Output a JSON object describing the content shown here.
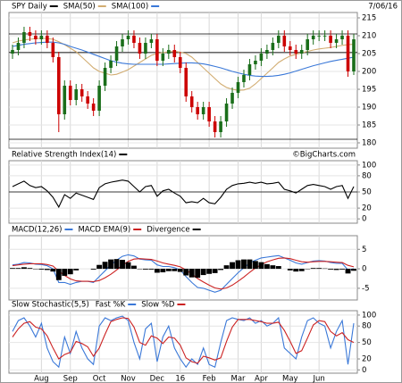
{
  "chart_data": [
    {
      "type": "candlestick",
      "title": "SPY Daily",
      "date": "7/06/16",
      "color": "#000000",
      "up_color": "#1a6e1a",
      "down_color": "#cc0000",
      "open": [
        205,
        206,
        208,
        211,
        210,
        209,
        210,
        208,
        204,
        188,
        196,
        192,
        195,
        193,
        191,
        189,
        196,
        201,
        203,
        207,
        209,
        210,
        208,
        205,
        208,
        209,
        203,
        205,
        206,
        204,
        201,
        193,
        190,
        188,
        190,
        186,
        183,
        186,
        191,
        194,
        197,
        199,
        202,
        203,
        205,
        206,
        208,
        210,
        207,
        206,
        205,
        206,
        209,
        210,
        210,
        210,
        208,
        209,
        210,
        200
      ],
      "high": [
        207.5,
        209.5,
        212.5,
        212.5,
        211.5,
        211.5,
        211.5,
        209.5,
        205.5,
        197.5,
        197.5,
        196.5,
        196.5,
        194.5,
        192.5,
        197.5,
        202.5,
        204.5,
        208.5,
        210.5,
        211.5,
        211.5,
        209.5,
        209.5,
        210.5,
        210.5,
        206.5,
        207.5,
        207.5,
        205.5,
        202.5,
        194.5,
        191.5,
        191.5,
        191.5,
        187.5,
        187.5,
        192.5,
        195.5,
        198.5,
        200.5,
        203.5,
        204.5,
        206.5,
        207.5,
        209.5,
        211.5,
        211.5,
        208.5,
        207.5,
        207.5,
        210.5,
        211.5,
        211.5,
        211.5,
        211.5,
        210.5,
        211.5,
        211.5,
        210.5
      ],
      "low": [
        203.5,
        204.5,
        206.5,
        208.5,
        207.5,
        207.5,
        206.5,
        202.5,
        183,
        186.5,
        190.5,
        190.5,
        191.5,
        189.5,
        187.5,
        187.5,
        194.5,
        199.5,
        201.5,
        205.5,
        207.5,
        206.5,
        203.5,
        203.5,
        206.5,
        201.5,
        201.5,
        203.5,
        202.5,
        199.5,
        191.5,
        188.5,
        186.5,
        186.5,
        184.5,
        181.5,
        181.5,
        184.5,
        189.5,
        192.5,
        195.5,
        197.5,
        200.5,
        201.5,
        203.5,
        204.5,
        206.5,
        205.5,
        204.5,
        203.5,
        203.5,
        204.5,
        207.5,
        208.5,
        208.5,
        206.5,
        206.5,
        207.5,
        198.5,
        199
      ],
      "close": [
        206,
        208,
        211,
        210,
        209,
        210,
        208,
        204,
        188,
        196,
        192,
        195,
        193,
        191,
        189,
        196,
        201,
        203,
        207,
        209,
        210,
        208,
        205,
        208,
        209,
        203,
        205,
        206,
        204,
        201,
        193,
        190,
        188,
        190,
        186,
        183,
        186,
        191,
        194,
        197,
        199,
        202,
        203,
        205,
        206,
        208,
        210,
        207,
        206,
        205,
        206,
        209,
        210,
        210,
        210,
        208,
        209,
        210,
        200,
        209
      ],
      "series": [
        {
          "name": "SMA(50)",
          "color": "#d2ad72",
          "values": [
            208,
            208.5,
            208.8,
            209,
            209.2,
            209.3,
            209.2,
            209,
            208.3,
            207.5,
            206.5,
            205.5,
            204,
            202.5,
            201,
            200,
            199.5,
            199,
            199.2,
            199.8,
            200.5,
            201.5,
            202.5,
            203.5,
            204.5,
            205,
            205.3,
            205.5,
            205.6,
            205.4,
            205,
            204,
            202.5,
            201,
            199.5,
            198,
            196.5,
            195.5,
            195,
            194.7,
            194.8,
            195.3,
            196.5,
            198,
            199.5,
            201,
            202.5,
            203.5,
            204.3,
            204.8,
            205.2,
            205.6,
            206,
            206.3,
            206.5,
            206.7,
            207,
            207.3,
            207.5,
            207.6
          ]
        },
        {
          "name": "SMA(100)",
          "color": "#3a78d8",
          "values": [
            207,
            207.3,
            207.6,
            207.8,
            208,
            208.1,
            208.2,
            208.2,
            208,
            207.6,
            207,
            206.5,
            206,
            205.4,
            204.8,
            204.2,
            203.6,
            203,
            202.6,
            202.3,
            202.1,
            202,
            202,
            202,
            202,
            202,
            202,
            202.1,
            202.2,
            202.3,
            202.4,
            202.4,
            202.3,
            202.1,
            201.8,
            201.4,
            201,
            200.5,
            200,
            199.6,
            199.2,
            198.9,
            198.7,
            198.6,
            198.6,
            198.7,
            198.9,
            199.2,
            199.6,
            200.1,
            200.6,
            201.1,
            201.6,
            202,
            202.4,
            202.8,
            203.1,
            203.4,
            203.7,
            204
          ]
        }
      ],
      "reference_lines": [
        210.5,
        205.3,
        181
      ],
      "ylim": [
        178.5,
        216.5
      ],
      "yticks": [
        180,
        185,
        190,
        195,
        200,
        205,
        210,
        215
      ]
    },
    {
      "type": "line",
      "credit": "©BigCharts.com",
      "series": [
        {
          "name": "Relative Strength Index(14)",
          "color": "#000000",
          "values": [
            60,
            65,
            70,
            62,
            58,
            60,
            52,
            40,
            22,
            45,
            38,
            48,
            44,
            40,
            36,
            58,
            65,
            68,
            70,
            72,
            70,
            60,
            50,
            60,
            62,
            42,
            52,
            55,
            48,
            42,
            30,
            32,
            30,
            38,
            30,
            28,
            40,
            55,
            62,
            65,
            66,
            68,
            66,
            68,
            65,
            66,
            68,
            55,
            52,
            48,
            55,
            62,
            64,
            62,
            60,
            55,
            60,
            62,
            38,
            60
          ]
        }
      ],
      "reference_lines": [
        50
      ],
      "ylim": [
        -8,
        108
      ],
      "yticks": [
        0,
        20,
        50,
        80,
        100
      ]
    },
    {
      "type": "macd",
      "series": [
        {
          "name": "MACD(12,26)",
          "color": "#3a78d8",
          "values": [
            1,
            1.2,
            1.6,
            1.5,
            1.2,
            1.1,
            0.8,
            0,
            -3.5,
            -3.5,
            -4,
            -3.5,
            -3.2,
            -3.2,
            -3.5,
            -2,
            -0.5,
            1,
            2.2,
            3.2,
            3.6,
            3.3,
            2.5,
            2.3,
            2.2,
            1,
            0.6,
            0.6,
            0.3,
            -0.3,
            -2,
            -3.5,
            -4.8,
            -5,
            -5.5,
            -6,
            -5.5,
            -4,
            -2.5,
            -1,
            0.3,
            1.5,
            2.2,
            2.8,
            3,
            3.2,
            3.4,
            2.8,
            2.2,
            1.5,
            1.2,
            1.6,
            2,
            2.1,
            2,
            1.6,
            1.4,
            1.4,
            -0.3,
            0
          ]
        },
        {
          "name": "MACD EMA(9)",
          "color": "#cc2222",
          "values": [
            0.8,
            1,
            1.2,
            1.3,
            1.3,
            1.3,
            1.1,
            0.7,
            -0.6,
            -1.7,
            -2.6,
            -3.1,
            -3.2,
            -3.2,
            -3.3,
            -3,
            -2.3,
            -1.4,
            -0.3,
            0.9,
            1.9,
            2.5,
            2.6,
            2.5,
            2.4,
            2,
            1.5,
            1.2,
            0.9,
            0.5,
            -0.3,
            -1.3,
            -2.5,
            -3.4,
            -4.2,
            -4.9,
            -5.2,
            -4.9,
            -4.2,
            -3.2,
            -2.1,
            -0.9,
            0.2,
            1.1,
            1.8,
            2.3,
            2.7,
            2.8,
            2.6,
            2.2,
            1.8,
            1.7,
            1.8,
            1.9,
            1.9,
            1.8,
            1.7,
            1.6,
            0.9,
            0.5
          ]
        },
        {
          "name": "Divergence",
          "color": "#000000",
          "kind": "bar",
          "values": [
            0.2,
            0.2,
            0.4,
            0.2,
            -0.1,
            -0.2,
            -0.3,
            -0.7,
            -2.9,
            -1.8,
            -1.4,
            -0.4,
            0,
            0,
            -0.2,
            1,
            1.8,
            2.4,
            2.5,
            2.3,
            1.7,
            0.8,
            -0.1,
            -0.2,
            -0.2,
            -1,
            -0.9,
            -0.6,
            -0.6,
            -0.8,
            -1.7,
            -2.2,
            -2.3,
            -1.6,
            -1.3,
            -1.1,
            -0.3,
            0.9,
            1.7,
            2.2,
            2.4,
            2.4,
            2,
            1.7,
            1.2,
            0.9,
            0.7,
            0,
            -0.4,
            -0.7,
            -0.6,
            -0.1,
            0.2,
            0.2,
            0.1,
            -0.2,
            -0.3,
            -0.2,
            -1.2,
            -0.5
          ]
        }
      ],
      "ylim": [
        -8,
        8.5
      ],
      "yticks": [
        -5,
        0,
        5
      ]
    },
    {
      "type": "line",
      "title": "Slow Stochastic(5,5)",
      "series": [
        {
          "name": "Fast %K",
          "color": "#3a78d8",
          "values": [
            70,
            90,
            95,
            80,
            60,
            85,
            40,
            15,
            5,
            60,
            30,
            70,
            40,
            20,
            10,
            80,
            95,
            90,
            95,
            98,
            90,
            50,
            20,
            75,
            85,
            15,
            60,
            80,
            40,
            20,
            5,
            20,
            10,
            40,
            10,
            5,
            50,
            90,
            95,
            92,
            90,
            95,
            85,
            90,
            80,
            85,
            95,
            40,
            30,
            20,
            60,
            90,
            95,
            85,
            80,
            40,
            70,
            90,
            10,
            85
          ]
        },
        {
          "name": "Slow %D",
          "color": "#cc2222",
          "values": [
            60,
            75,
            85,
            88,
            78,
            75,
            62,
            40,
            20,
            28,
            32,
            52,
            48,
            42,
            25,
            40,
            65,
            88,
            92,
            95,
            94,
            78,
            50,
            45,
            62,
            58,
            48,
            60,
            58,
            45,
            22,
            15,
            12,
            25,
            22,
            18,
            22,
            52,
            78,
            92,
            92,
            92,
            90,
            88,
            85,
            85,
            87,
            72,
            52,
            30,
            35,
            58,
            82,
            90,
            88,
            70,
            62,
            68,
            55,
            50
          ]
        }
      ],
      "categories": [
        null,
        null,
        null,
        null,
        null,
        "Aug",
        null,
        null,
        null,
        null,
        "Sep",
        null,
        null,
        null,
        null,
        "Oct",
        null,
        null,
        null,
        null,
        "Nov",
        null,
        null,
        null,
        null,
        "Dec",
        null,
        null,
        null,
        "16",
        null,
        null,
        null,
        null,
        "Feb",
        null,
        null,
        null,
        null,
        "Mar",
        null,
        null,
        null,
        "Apr",
        null,
        null,
        null,
        null,
        "May",
        null,
        null,
        null,
        null,
        "Jun",
        null,
        null,
        null,
        null,
        null,
        null
      ],
      "ylim": [
        -6,
        108
      ],
      "yticks": [
        0,
        20,
        50,
        80,
        100
      ]
    }
  ]
}
